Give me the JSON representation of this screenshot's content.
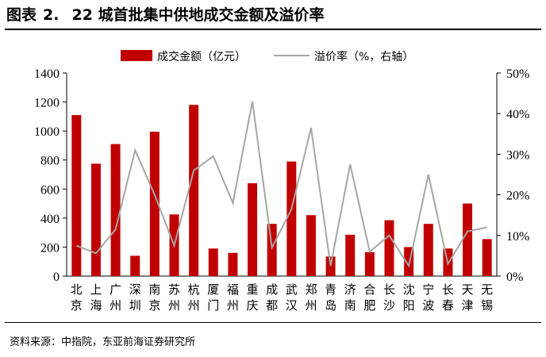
{
  "figure": {
    "label": "图表",
    "number": "2.",
    "title": "22 城首批集中供地成交金额及溢价率",
    "source": "资料来源：中指院，东亚前海证券研究所"
  },
  "colors": {
    "bar": "#c00000",
    "line": "#a6a6a6",
    "axis": "#000000"
  },
  "chart_data": {
    "type": "bar",
    "categories": [
      "北京",
      "上海",
      "广州",
      "深圳",
      "南京",
      "苏州",
      "杭州",
      "厦门",
      "福州",
      "重庆",
      "成都",
      "武汉",
      "郑州",
      "青岛",
      "济南",
      "合肥",
      "长沙",
      "沈阳",
      "宁波",
      "长春",
      "天津",
      "无锡"
    ],
    "category_lines": [
      [
        "北",
        "京"
      ],
      [
        "上",
        "海"
      ],
      [
        "广",
        "州"
      ],
      [
        "深",
        "圳"
      ],
      [
        "南",
        "京"
      ],
      [
        "苏",
        "州"
      ],
      [
        "杭",
        "州"
      ],
      [
        "厦",
        "门"
      ],
      [
        "福",
        "州"
      ],
      [
        "重",
        "庆"
      ],
      [
        "成",
        "都"
      ],
      [
        "武",
        "汉"
      ],
      [
        "郑",
        "州"
      ],
      [
        "青",
        "岛"
      ],
      [
        "济",
        "南"
      ],
      [
        "合",
        "肥"
      ],
      [
        "长",
        "沙"
      ],
      [
        "沈",
        "阳"
      ],
      [
        "宁",
        "波"
      ],
      [
        "长",
        "春"
      ],
      [
        "天",
        "津"
      ],
      [
        "无",
        "锡"
      ]
    ],
    "series": [
      {
        "name": "成交金额（亿元）",
        "type": "bar",
        "axis": "left",
        "values": [
          1110,
          775,
          910,
          140,
          995,
          425,
          1180,
          190,
          160,
          640,
          360,
          790,
          420,
          135,
          285,
          165,
          385,
          200,
          360,
          190,
          500,
          255
        ]
      },
      {
        "name": "溢价率（%，右轴）",
        "type": "line",
        "axis": "right",
        "values": [
          7.5,
          5.6,
          11.5,
          31.0,
          20.0,
          7.5,
          26.0,
          29.5,
          18.0,
          43.0,
          7.0,
          16.5,
          36.5,
          2.5,
          27.5,
          6.0,
          10.0,
          2.5,
          25.0,
          3.0,
          11.0,
          12.0
        ]
      }
    ],
    "ylim": [
      0,
      1400
    ],
    "yticks": [
      0,
      200,
      400,
      600,
      800,
      1000,
      1200,
      1400
    ],
    "y2lim": [
      0,
      50
    ],
    "y2ticks": [
      "0%",
      "10%",
      "20%",
      "30%",
      "40%",
      "50%"
    ],
    "legend_position": "top-center",
    "grid": false
  }
}
